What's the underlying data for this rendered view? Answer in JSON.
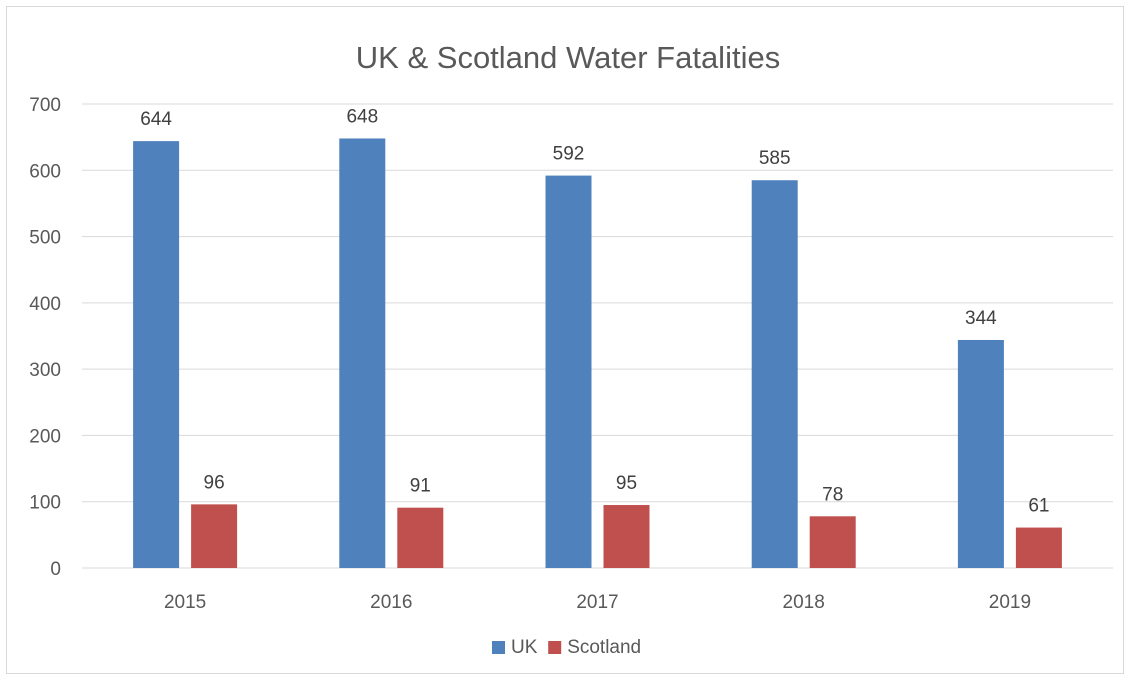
{
  "chart_data": {
    "type": "bar",
    "title": "UK & Scotland Water Fatalities",
    "categories": [
      "2015",
      "2016",
      "2017",
      "2018",
      "2019"
    ],
    "series": [
      {
        "name": "UK",
        "values": [
          644,
          648,
          592,
          585,
          344
        ],
        "color": "#4f81bd"
      },
      {
        "name": "Scotland",
        "values": [
          96,
          91,
          95,
          78,
          61
        ],
        "color": "#c0504d"
      }
    ],
    "xlabel": "",
    "ylabel": "",
    "ylim": [
      0,
      700
    ],
    "yticks": [
      0,
      100,
      200,
      300,
      400,
      500,
      600,
      700
    ],
    "grid": true,
    "gridline_color": "#d9d9d9",
    "legend_position": "bottom",
    "data_labels": true
  }
}
